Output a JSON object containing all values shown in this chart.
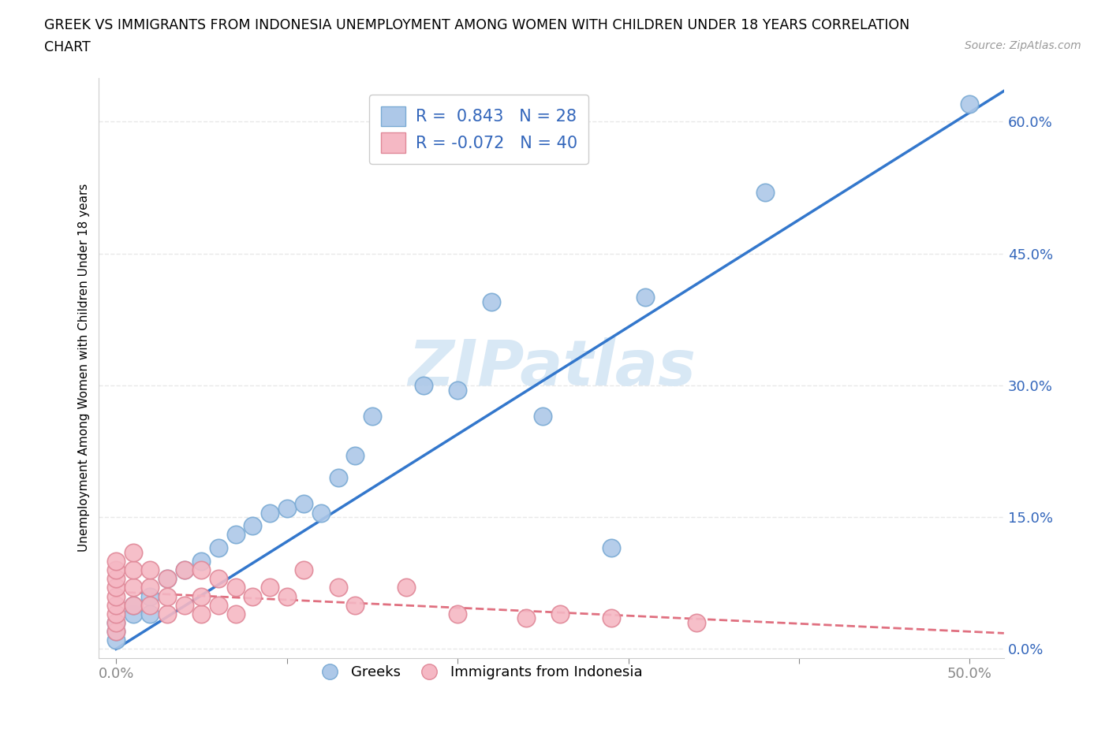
{
  "title_line1": "GREEK VS IMMIGRANTS FROM INDONESIA UNEMPLOYMENT AMONG WOMEN WITH CHILDREN UNDER 18 YEARS CORRELATION",
  "title_line2": "CHART",
  "source_text": "Source: ZipAtlas.com",
  "ylabel": "Unemployment Among Women with Children Under 18 years",
  "y_ticks": [
    0.0,
    0.15,
    0.3,
    0.45,
    0.6
  ],
  "y_tick_labels": [
    "0.0%",
    "15.0%",
    "30.0%",
    "45.0%",
    "60.0%"
  ],
  "x_ticks": [
    0.0,
    0.1,
    0.2,
    0.3,
    0.4,
    0.5
  ],
  "x_tick_labels": [
    "0.0%",
    "",
    "",
    "",
    "",
    "50.0%"
  ],
  "xlim": [
    -0.01,
    0.52
  ],
  "ylim": [
    -0.01,
    0.65
  ],
  "r_greek": 0.843,
  "n_greek": 28,
  "r_indonesia": -0.072,
  "n_indonesia": 40,
  "greek_color": "#adc8e8",
  "greek_edge_color": "#7aaad4",
  "indonesia_color": "#f5b8c4",
  "indonesia_edge_color": "#e08898",
  "greek_line_color": "#3377cc",
  "indonesia_line_color": "#e07080",
  "watermark_color": "#d8e8f5",
  "watermark_text": "ZIPatlas",
  "grid_color": "#e8e8e8",
  "legend_text_color": "#3366bb",
  "greek_scatter_x": [
    0.0,
    0.0,
    0.0,
    0.01,
    0.01,
    0.02,
    0.02,
    0.03,
    0.04,
    0.05,
    0.06,
    0.07,
    0.08,
    0.09,
    0.1,
    0.11,
    0.12,
    0.13,
    0.14,
    0.15,
    0.18,
    0.2,
    0.22,
    0.25,
    0.29,
    0.31,
    0.38,
    0.5
  ],
  "greek_scatter_y": [
    0.01,
    0.02,
    0.03,
    0.04,
    0.05,
    0.06,
    0.04,
    0.08,
    0.09,
    0.1,
    0.115,
    0.13,
    0.14,
    0.155,
    0.16,
    0.165,
    0.155,
    0.195,
    0.22,
    0.265,
    0.3,
    0.295,
    0.395,
    0.265,
    0.115,
    0.4,
    0.52,
    0.62
  ],
  "indonesia_scatter_x": [
    0.0,
    0.0,
    0.0,
    0.0,
    0.0,
    0.0,
    0.0,
    0.0,
    0.0,
    0.01,
    0.01,
    0.01,
    0.01,
    0.02,
    0.02,
    0.02,
    0.03,
    0.03,
    0.03,
    0.04,
    0.04,
    0.05,
    0.05,
    0.05,
    0.06,
    0.06,
    0.07,
    0.07,
    0.08,
    0.09,
    0.1,
    0.11,
    0.13,
    0.14,
    0.17,
    0.2,
    0.24,
    0.26,
    0.29,
    0.34
  ],
  "indonesia_scatter_y": [
    0.02,
    0.03,
    0.04,
    0.05,
    0.06,
    0.07,
    0.08,
    0.09,
    0.1,
    0.05,
    0.07,
    0.09,
    0.11,
    0.05,
    0.07,
    0.09,
    0.04,
    0.06,
    0.08,
    0.05,
    0.09,
    0.04,
    0.06,
    0.09,
    0.05,
    0.08,
    0.04,
    0.07,
    0.06,
    0.07,
    0.06,
    0.09,
    0.07,
    0.05,
    0.07,
    0.04,
    0.035,
    0.04,
    0.035,
    0.03
  ]
}
